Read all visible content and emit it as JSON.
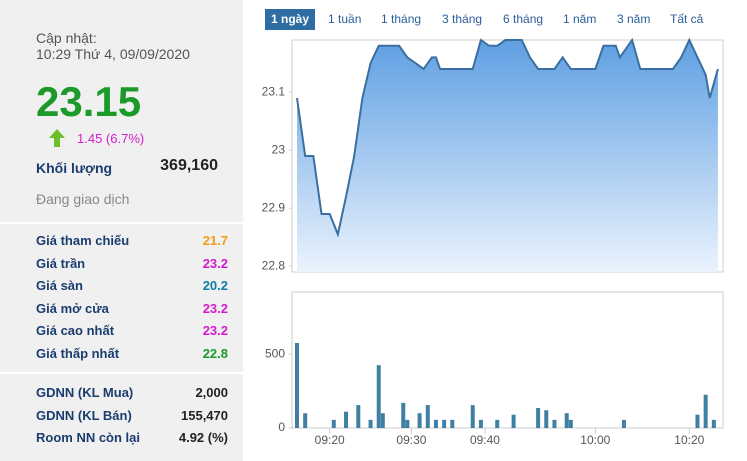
{
  "sidebar": {
    "updated_label": "Cập nhật:",
    "updated_time": "10:29 Thứ 4, 09/09/2020",
    "price": "23.15",
    "price_color": "#1b9a2a",
    "change": "1.45 (6.7%)",
    "change_color": "#d41bd0",
    "volume_label": "Khối lượng",
    "volume": "369,160",
    "status": "Đang giao dịch",
    "price_rows": [
      {
        "label": "Giá tham chiếu",
        "value": "21.7",
        "color": "#f39c12"
      },
      {
        "label": "Giá trần",
        "value": "23.2",
        "color": "#d41bd0"
      },
      {
        "label": "Giá sàn",
        "value": "20.2",
        "color": "#0e7fa6"
      },
      {
        "label": "Giá mở cửa",
        "value": "23.2",
        "color": "#d41bd0"
      },
      {
        "label": "Giá cao nhất",
        "value": "23.2",
        "color": "#d41bd0"
      },
      {
        "label": "Giá thấp nhất",
        "value": "22.8",
        "color": "#1b9a2a"
      }
    ],
    "foreign_rows": [
      {
        "label": "GDNN (KL Mua)",
        "value": "2,000",
        "color": "#222222"
      },
      {
        "label": "GDNN (KL Bán)",
        "value": "155,470",
        "color": "#222222"
      },
      {
        "label": "Room NN còn lại",
        "value": "4.92 (%)",
        "color": "#222222"
      }
    ]
  },
  "tabs": [
    "1 ngày",
    "1 tuần",
    "1 tháng",
    "3 tháng",
    "6 tháng",
    "1 năm",
    "3 năm",
    "Tất cả"
  ],
  "active_tab": 0,
  "chart_data": [
    {
      "type": "area",
      "color": "#3a6fa0",
      "xlim": [
        0,
        104
      ],
      "ylim": [
        22.79,
        23.19
      ],
      "yticks": [
        23.1,
        23,
        22.9,
        22.8
      ],
      "x": [
        0,
        2,
        4,
        6,
        8,
        10,
        12,
        14,
        16,
        18,
        20,
        22,
        25,
        27,
        29,
        31,
        33,
        34,
        35,
        37,
        39,
        41,
        43,
        45,
        47,
        49,
        51,
        53,
        55,
        57,
        59,
        61,
        63,
        65,
        67,
        69,
        71,
        73,
        75,
        78,
        79,
        82,
        84,
        86,
        88,
        90,
        92,
        94,
        96,
        98,
        100,
        101,
        103
      ],
      "values": [
        23.09,
        22.99,
        22.99,
        22.89,
        22.89,
        22.855,
        22.92,
        22.99,
        23.09,
        23.15,
        23.18,
        23.18,
        23.18,
        23.16,
        23.15,
        23.14,
        23.16,
        23.16,
        23.14,
        23.14,
        23.14,
        23.14,
        23.14,
        23.19,
        23.18,
        23.18,
        23.19,
        23.19,
        23.19,
        23.16,
        23.14,
        23.14,
        23.14,
        23.16,
        23.14,
        23.14,
        23.14,
        23.14,
        23.18,
        23.18,
        23.16,
        23.19,
        23.14,
        23.14,
        23.14,
        23.14,
        23.14,
        23.16,
        23.19,
        23.16,
        23.13,
        23.09,
        23.14
      ]
    },
    {
      "type": "bar",
      "color": "#3f7fa3",
      "xlim": [
        0,
        104
      ],
      "ylim": [
        0,
        920
      ],
      "yticks": [
        500,
        0
      ],
      "xticks": [
        {
          "value": 8,
          "label": "09:20"
        },
        {
          "value": 28,
          "label": "09:30"
        },
        {
          "value": 46,
          "label": "09:40"
        },
        {
          "value": 73,
          "label": "10:00"
        },
        {
          "value": 96,
          "label": "10:20"
        }
      ],
      "x": [
        0,
        2,
        9,
        12,
        15,
        18,
        20,
        21,
        26,
        27,
        30,
        32,
        34,
        36,
        38,
        43,
        45,
        49,
        53,
        59,
        61,
        63,
        66,
        67,
        80,
        98,
        100,
        102
      ],
      "values": [
        575,
        100,
        55,
        110,
        155,
        55,
        425,
        100,
        170,
        55,
        100,
        155,
        55,
        55,
        55,
        155,
        55,
        55,
        90,
        135,
        120,
        55,
        100,
        55,
        55,
        90,
        225,
        55
      ]
    }
  ]
}
